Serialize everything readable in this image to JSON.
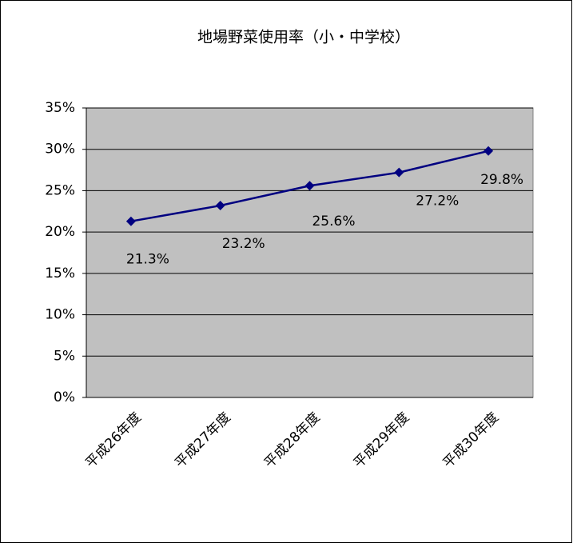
{
  "chart_data": {
    "type": "line",
    "title": "地場野菜使用率（小・中学校）",
    "categories": [
      "平成26年度",
      "平成27年度",
      "平成28年度",
      "平成29年度",
      "平成30年度"
    ],
    "series": [
      {
        "name": null,
        "color": "#000080",
        "values": [
          21.3,
          23.2,
          25.6,
          27.2,
          29.8
        ],
        "value_labels": [
          "21.3%",
          "23.2%",
          "25.6%",
          "27.2%",
          "29.8%"
        ]
      }
    ],
    "ylim": [
      0,
      35
    ],
    "yticks": [
      {
        "value": 0,
        "label": "0%"
      },
      {
        "value": 5,
        "label": "5%"
      },
      {
        "value": 10,
        "label": "10%"
      },
      {
        "value": 15,
        "label": "15%"
      },
      {
        "value": 20,
        "label": "20%"
      },
      {
        "value": 25,
        "label": "25%"
      },
      {
        "value": 30,
        "label": "30%"
      },
      {
        "value": 35,
        "label": "35%"
      }
    ],
    "grid": true,
    "plot_background": "#c0c0c0"
  }
}
